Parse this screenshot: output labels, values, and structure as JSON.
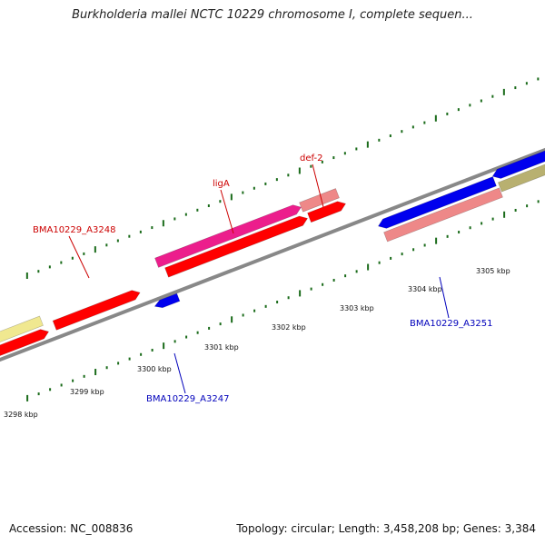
{
  "title": "Burkholderia mallei NCTC 10229 chromosome I, complete sequen...",
  "footer": {
    "accession": "Accession: NC_008836",
    "summary": "Topology: circular; Length: 3,458,208 bp; Genes: 3,384"
  },
  "colors": {
    "backbone": "#888888",
    "tick": "#1a6b1a",
    "label_forward": "#cc0000",
    "label_reverse": "#0000bb",
    "red": "#ff0000",
    "pink": "#ec1e8c",
    "light_red": "#ee8888",
    "blue": "#0000ee",
    "khaki": "#b8b070",
    "pale_yellow": "#f0e890"
  },
  "tick_labels": [
    {
      "text": "3298 kbp",
      "kbp": 3298
    },
    {
      "text": "3299 kbp",
      "kbp": 3299
    },
    {
      "text": "3300 kbp",
      "kbp": 3300
    },
    {
      "text": "3301 kbp",
      "kbp": 3301
    },
    {
      "text": "3302 kbp",
      "kbp": 3302
    },
    {
      "text": "3303 kbp",
      "kbp": 3303
    },
    {
      "text": "3304 kbp",
      "kbp": 3304
    },
    {
      "text": "3305 kbp",
      "kbp": 3305
    }
  ],
  "gene_labels": [
    {
      "text": "def-2",
      "strand": "forward"
    },
    {
      "text": "ligA",
      "strand": "forward"
    },
    {
      "text": "BMA10229_A3248",
      "strand": "forward"
    },
    {
      "text": "BMA10229_A3251",
      "strand": "reverse"
    },
    {
      "text": "BMA10229_A3247",
      "strand": "reverse"
    }
  ]
}
